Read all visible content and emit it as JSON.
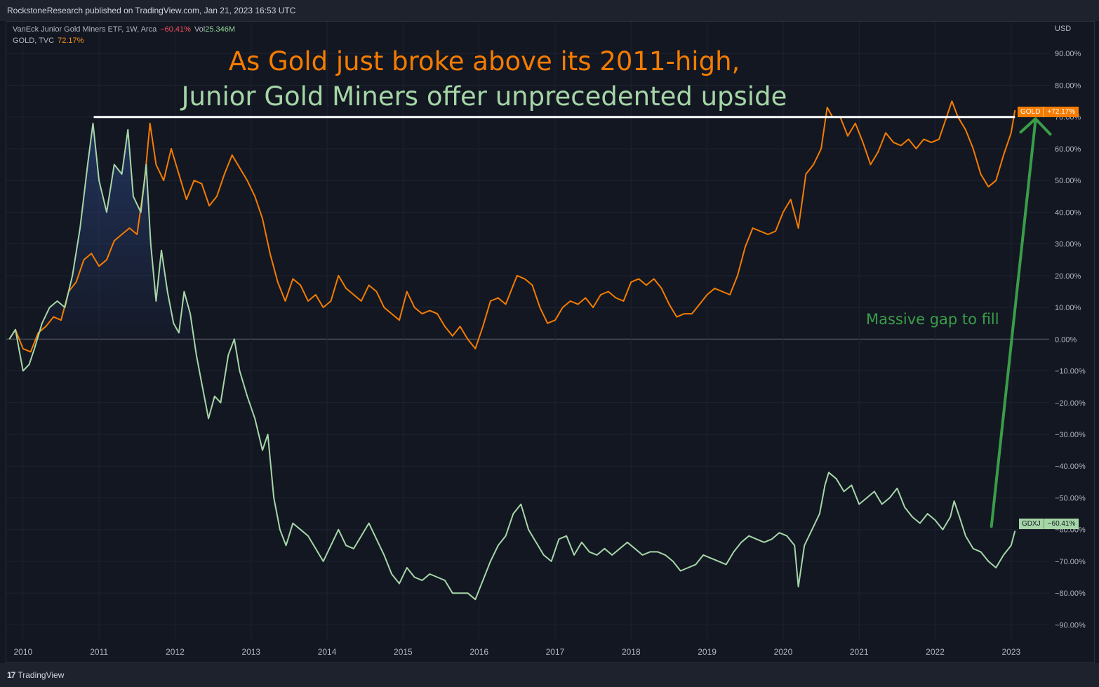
{
  "header": {
    "published": "RockstoneResearch published on TradingView.com, Jan 21, 2023 16:53 UTC"
  },
  "legend": {
    "row1_name": "VanEck Junior Gold Miners ETF, 1W, Arca",
    "row1_change": "−60.41%",
    "row1_vol_label": "Vol",
    "row1_vol_value": "25.346M",
    "row2_name": "GOLD, TVC",
    "row2_change": "72.17%"
  },
  "annotations": {
    "headline_1": "As Gold just broke above its 2011-high,",
    "headline_2": "Junior Gold Miners offer unprecedented upside",
    "gap_note": "Massive gap to fill"
  },
  "axis": {
    "currency": "USD"
  },
  "tags": {
    "gold_name": "GOLD",
    "gold_value": "+72.17%",
    "gdxj_name": "GDXJ",
    "gdxj_value": "−60.41%"
  },
  "footer": {
    "brand": "TradingView",
    "logo_glyph": "17"
  },
  "colors": {
    "gold": "#f57c00",
    "gdxj": "#a5d6a7",
    "arrow": "#3a9d48",
    "background": "#131722",
    "resistance": "#ffffff"
  },
  "chart_data": {
    "type": "line",
    "x_axis_ticks": [
      "2010",
      "2011",
      "2012",
      "2013",
      "2014",
      "2015",
      "2016",
      "2017",
      "2018",
      "2019",
      "2020",
      "2021",
      "2022",
      "2023"
    ],
    "y_axis_ticks": [
      "90.00%",
      "80.00%",
      "70.00%",
      "60.00%",
      "50.00%",
      "40.00%",
      "30.00%",
      "20.00%",
      "10.00%",
      "0.00%",
      "−10.00%",
      "−20.00%",
      "−30.00%",
      "−40.00%",
      "−50.00%",
      "−60.00%",
      "−70.00%",
      "−80.00%",
      "−90.00%"
    ],
    "ylim": [
      -95,
      100
    ],
    "xlim": [
      2009.78,
      2023.5
    ],
    "y_unit": "%",
    "series": [
      {
        "name": "GOLD",
        "color": "#f57c00",
        "points": [
          [
            2009.82,
            0
          ],
          [
            2009.9,
            3
          ],
          [
            2010.0,
            -3
          ],
          [
            2010.1,
            -4
          ],
          [
            2010.2,
            2
          ],
          [
            2010.3,
            4
          ],
          [
            2010.4,
            7
          ],
          [
            2010.5,
            6
          ],
          [
            2010.6,
            15
          ],
          [
            2010.7,
            18
          ],
          [
            2010.8,
            25
          ],
          [
            2010.9,
            27
          ],
          [
            2011.0,
            23
          ],
          [
            2011.1,
            25
          ],
          [
            2011.2,
            31
          ],
          [
            2011.3,
            33
          ],
          [
            2011.4,
            35
          ],
          [
            2011.5,
            33
          ],
          [
            2011.6,
            50
          ],
          [
            2011.67,
            68
          ],
          [
            2011.75,
            55
          ],
          [
            2011.85,
            50
          ],
          [
            2011.95,
            60
          ],
          [
            2012.05,
            52
          ],
          [
            2012.15,
            44
          ],
          [
            2012.25,
            50
          ],
          [
            2012.35,
            49
          ],
          [
            2012.45,
            42
          ],
          [
            2012.55,
            45
          ],
          [
            2012.65,
            52
          ],
          [
            2012.75,
            58
          ],
          [
            2012.85,
            54
          ],
          [
            2012.95,
            50
          ],
          [
            2013.05,
            45
          ],
          [
            2013.15,
            38
          ],
          [
            2013.25,
            27
          ],
          [
            2013.35,
            18
          ],
          [
            2013.45,
            12
          ],
          [
            2013.55,
            19
          ],
          [
            2013.65,
            17
          ],
          [
            2013.75,
            12
          ],
          [
            2013.85,
            14
          ],
          [
            2013.95,
            10
          ],
          [
            2014.05,
            12
          ],
          [
            2014.15,
            20
          ],
          [
            2014.25,
            16
          ],
          [
            2014.35,
            14
          ],
          [
            2014.45,
            12
          ],
          [
            2014.55,
            17
          ],
          [
            2014.65,
            15
          ],
          [
            2014.75,
            10
          ],
          [
            2014.85,
            8
          ],
          [
            2014.95,
            6
          ],
          [
            2015.05,
            15
          ],
          [
            2015.15,
            10
          ],
          [
            2015.25,
            8
          ],
          [
            2015.35,
            9
          ],
          [
            2015.45,
            8
          ],
          [
            2015.55,
            4
          ],
          [
            2015.65,
            1
          ],
          [
            2015.75,
            4
          ],
          [
            2015.85,
            0
          ],
          [
            2015.95,
            -3
          ],
          [
            2016.05,
            4
          ],
          [
            2016.15,
            12
          ],
          [
            2016.25,
            13
          ],
          [
            2016.35,
            11
          ],
          [
            2016.5,
            20
          ],
          [
            2016.6,
            19
          ],
          [
            2016.7,
            17
          ],
          [
            2016.8,
            10
          ],
          [
            2016.9,
            5
          ],
          [
            2017.0,
            6
          ],
          [
            2017.1,
            10
          ],
          [
            2017.2,
            12
          ],
          [
            2017.3,
            11
          ],
          [
            2017.4,
            13
          ],
          [
            2017.5,
            10
          ],
          [
            2017.6,
            14
          ],
          [
            2017.7,
            15
          ],
          [
            2017.8,
            13
          ],
          [
            2017.9,
            12
          ],
          [
            2018.0,
            18
          ],
          [
            2018.1,
            19
          ],
          [
            2018.2,
            17
          ],
          [
            2018.3,
            19
          ],
          [
            2018.4,
            16
          ],
          [
            2018.5,
            11
          ],
          [
            2018.6,
            7
          ],
          [
            2018.7,
            8
          ],
          [
            2018.8,
            8
          ],
          [
            2018.9,
            11
          ],
          [
            2019.0,
            14
          ],
          [
            2019.1,
            16
          ],
          [
            2019.2,
            15
          ],
          [
            2019.3,
            14
          ],
          [
            2019.4,
            20
          ],
          [
            2019.5,
            29
          ],
          [
            2019.6,
            35
          ],
          [
            2019.7,
            34
          ],
          [
            2019.8,
            33
          ],
          [
            2019.9,
            34
          ],
          [
            2020.0,
            40
          ],
          [
            2020.1,
            44
          ],
          [
            2020.2,
            35
          ],
          [
            2020.3,
            52
          ],
          [
            2020.4,
            55
          ],
          [
            2020.5,
            60
          ],
          [
            2020.58,
            73
          ],
          [
            2020.65,
            70
          ],
          [
            2020.75,
            70
          ],
          [
            2020.85,
            64
          ],
          [
            2020.95,
            68
          ],
          [
            2021.05,
            62
          ],
          [
            2021.15,
            55
          ],
          [
            2021.25,
            59
          ],
          [
            2021.35,
            65
          ],
          [
            2021.45,
            62
          ],
          [
            2021.55,
            61
          ],
          [
            2021.65,
            63
          ],
          [
            2021.75,
            60
          ],
          [
            2021.85,
            63
          ],
          [
            2021.95,
            62
          ],
          [
            2022.05,
            63
          ],
          [
            2022.15,
            70
          ],
          [
            2022.22,
            75
          ],
          [
            2022.3,
            70
          ],
          [
            2022.4,
            66
          ],
          [
            2022.5,
            60
          ],
          [
            2022.6,
            52
          ],
          [
            2022.7,
            48
          ],
          [
            2022.8,
            50
          ],
          [
            2022.9,
            58
          ],
          [
            2023.0,
            65
          ],
          [
            2023.05,
            72.17
          ]
        ]
      },
      {
        "name": "GDXJ",
        "color": "#a5d6a7",
        "points": [
          [
            2009.82,
            0
          ],
          [
            2009.9,
            3
          ],
          [
            2010.0,
            -10
          ],
          [
            2010.08,
            -8
          ],
          [
            2010.15,
            -3
          ],
          [
            2010.25,
            5
          ],
          [
            2010.35,
            10
          ],
          [
            2010.45,
            12
          ],
          [
            2010.55,
            10
          ],
          [
            2010.65,
            20
          ],
          [
            2010.75,
            35
          ],
          [
            2010.85,
            55
          ],
          [
            2010.92,
            68
          ],
          [
            2011.0,
            50
          ],
          [
            2011.1,
            40
          ],
          [
            2011.2,
            55
          ],
          [
            2011.3,
            52
          ],
          [
            2011.38,
            66
          ],
          [
            2011.45,
            45
          ],
          [
            2011.55,
            40
          ],
          [
            2011.62,
            55
          ],
          [
            2011.68,
            30
          ],
          [
            2011.75,
            12
          ],
          [
            2011.82,
            28
          ],
          [
            2011.9,
            15
          ],
          [
            2011.98,
            5
          ],
          [
            2012.05,
            2
          ],
          [
            2012.12,
            15
          ],
          [
            2012.2,
            8
          ],
          [
            2012.28,
            -5
          ],
          [
            2012.36,
            -15
          ],
          [
            2012.44,
            -25
          ],
          [
            2012.52,
            -18
          ],
          [
            2012.6,
            -20
          ],
          [
            2012.7,
            -5
          ],
          [
            2012.78,
            0
          ],
          [
            2012.85,
            -10
          ],
          [
            2012.95,
            -18
          ],
          [
            2013.05,
            -25
          ],
          [
            2013.15,
            -35
          ],
          [
            2013.22,
            -30
          ],
          [
            2013.3,
            -50
          ],
          [
            2013.38,
            -60
          ],
          [
            2013.46,
            -65
          ],
          [
            2013.55,
            -58
          ],
          [
            2013.65,
            -60
          ],
          [
            2013.75,
            -62
          ],
          [
            2013.85,
            -66
          ],
          [
            2013.95,
            -70
          ],
          [
            2014.05,
            -65
          ],
          [
            2014.15,
            -60
          ],
          [
            2014.25,
            -65
          ],
          [
            2014.35,
            -66
          ],
          [
            2014.45,
            -62
          ],
          [
            2014.55,
            -58
          ],
          [
            2014.65,
            -63
          ],
          [
            2014.75,
            -68
          ],
          [
            2014.85,
            -74
          ],
          [
            2014.95,
            -77
          ],
          [
            2015.05,
            -72
          ],
          [
            2015.15,
            -75
          ],
          [
            2015.25,
            -76
          ],
          [
            2015.35,
            -74
          ],
          [
            2015.45,
            -75
          ],
          [
            2015.55,
            -76
          ],
          [
            2015.65,
            -80
          ],
          [
            2015.75,
            -80
          ],
          [
            2015.85,
            -80
          ],
          [
            2015.95,
            -82
          ],
          [
            2016.05,
            -76
          ],
          [
            2016.15,
            -70
          ],
          [
            2016.25,
            -65
          ],
          [
            2016.35,
            -62
          ],
          [
            2016.45,
            -55
          ],
          [
            2016.55,
            -52
          ],
          [
            2016.65,
            -60
          ],
          [
            2016.75,
            -64
          ],
          [
            2016.85,
            -68
          ],
          [
            2016.95,
            -70
          ],
          [
            2017.05,
            -63
          ],
          [
            2017.15,
            -62
          ],
          [
            2017.25,
            -68
          ],
          [
            2017.35,
            -64
          ],
          [
            2017.45,
            -67
          ],
          [
            2017.55,
            -68
          ],
          [
            2017.65,
            -66
          ],
          [
            2017.75,
            -68
          ],
          [
            2017.85,
            -66
          ],
          [
            2017.95,
            -64
          ],
          [
            2018.05,
            -66
          ],
          [
            2018.15,
            -68
          ],
          [
            2018.25,
            -67
          ],
          [
            2018.35,
            -67
          ],
          [
            2018.45,
            -68
          ],
          [
            2018.55,
            -70
          ],
          [
            2018.65,
            -73
          ],
          [
            2018.75,
            -72
          ],
          [
            2018.85,
            -71
          ],
          [
            2018.95,
            -68
          ],
          [
            2019.05,
            -69
          ],
          [
            2019.15,
            -70
          ],
          [
            2019.25,
            -71
          ],
          [
            2019.35,
            -67
          ],
          [
            2019.45,
            -64
          ],
          [
            2019.55,
            -62
          ],
          [
            2019.65,
            -63
          ],
          [
            2019.75,
            -64
          ],
          [
            2019.85,
            -63
          ],
          [
            2019.95,
            -61
          ],
          [
            2020.05,
            -62
          ],
          [
            2020.15,
            -65
          ],
          [
            2020.2,
            -78
          ],
          [
            2020.28,
            -65
          ],
          [
            2020.38,
            -60
          ],
          [
            2020.48,
            -55
          ],
          [
            2020.55,
            -46
          ],
          [
            2020.6,
            -42
          ],
          [
            2020.7,
            -44
          ],
          [
            2020.8,
            -48
          ],
          [
            2020.9,
            -46
          ],
          [
            2021.0,
            -52
          ],
          [
            2021.1,
            -50
          ],
          [
            2021.2,
            -48
          ],
          [
            2021.3,
            -52
          ],
          [
            2021.4,
            -50
          ],
          [
            2021.5,
            -47
          ],
          [
            2021.6,
            -53
          ],
          [
            2021.7,
            -56
          ],
          [
            2021.8,
            -58
          ],
          [
            2021.9,
            -55
          ],
          [
            2022.0,
            -57
          ],
          [
            2022.1,
            -60
          ],
          [
            2022.2,
            -56
          ],
          [
            2022.25,
            -51
          ],
          [
            2022.32,
            -56
          ],
          [
            2022.4,
            -62
          ],
          [
            2022.5,
            -66
          ],
          [
            2022.6,
            -67
          ],
          [
            2022.7,
            -70
          ],
          [
            2022.8,
            -72
          ],
          [
            2022.9,
            -68
          ],
          [
            2023.0,
            -65
          ],
          [
            2023.05,
            -60.41
          ]
        ]
      }
    ],
    "resistance_line": {
      "y": 70,
      "x_start": 2010.93,
      "x_end": 2023.05
    }
  }
}
